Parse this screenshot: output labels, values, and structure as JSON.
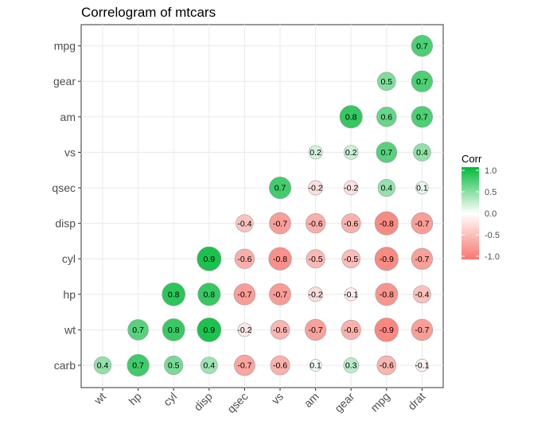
{
  "chart_data": {
    "type": "correlogram",
    "title": "Correlogram of mtcars",
    "x_variables": [
      "wt",
      "hp",
      "cyl",
      "disp",
      "qsec",
      "vs",
      "am",
      "gear",
      "mpg",
      "drat"
    ],
    "y_variables": [
      "carb",
      "wt",
      "hp",
      "cyl",
      "disp",
      "qsec",
      "vs",
      "am",
      "gear",
      "mpg"
    ],
    "cells": [
      {
        "x": "drat",
        "y": "mpg",
        "value": 0.7,
        "label": "0.7"
      },
      {
        "x": "mpg",
        "y": "gear",
        "value": 0.5,
        "label": "0.5"
      },
      {
        "x": "drat",
        "y": "gear",
        "value": 0.7,
        "label": "0.7"
      },
      {
        "x": "gear",
        "y": "am",
        "value": 0.8,
        "label": "0.8"
      },
      {
        "x": "mpg",
        "y": "am",
        "value": 0.6,
        "label": "0.6"
      },
      {
        "x": "drat",
        "y": "am",
        "value": 0.7,
        "label": "0.7"
      },
      {
        "x": "am",
        "y": "vs",
        "value": 0.17,
        "label": "0.2"
      },
      {
        "x": "gear",
        "y": "vs",
        "value": 0.21,
        "label": "0.2"
      },
      {
        "x": "mpg",
        "y": "vs",
        "value": 0.66,
        "label": "0.7"
      },
      {
        "x": "drat",
        "y": "vs",
        "value": 0.44,
        "label": "0.4"
      },
      {
        "x": "vs",
        "y": "qsec",
        "value": 0.74,
        "label": "0.7"
      },
      {
        "x": "am",
        "y": "qsec",
        "value": -0.23,
        "label": "-0.2"
      },
      {
        "x": "gear",
        "y": "qsec",
        "value": -0.21,
        "label": "-0.2"
      },
      {
        "x": "mpg",
        "y": "qsec",
        "value": 0.42,
        "label": "0.4"
      },
      {
        "x": "drat",
        "y": "qsec",
        "value": 0.09,
        "label": "0.1"
      },
      {
        "x": "qsec",
        "y": "disp",
        "value": -0.43,
        "label": "-0.4"
      },
      {
        "x": "vs",
        "y": "disp",
        "value": -0.71,
        "label": "-0.7"
      },
      {
        "x": "am",
        "y": "disp",
        "value": -0.59,
        "label": "-0.6"
      },
      {
        "x": "gear",
        "y": "disp",
        "value": -0.56,
        "label": "-0.6"
      },
      {
        "x": "mpg",
        "y": "disp",
        "value": -0.85,
        "label": "-0.8"
      },
      {
        "x": "drat",
        "y": "disp",
        "value": -0.71,
        "label": "-0.7"
      },
      {
        "x": "disp",
        "y": "cyl",
        "value": 0.9,
        "label": "0.9"
      },
      {
        "x": "qsec",
        "y": "cyl",
        "value": -0.59,
        "label": "-0.6"
      },
      {
        "x": "vs",
        "y": "cyl",
        "value": -0.81,
        "label": "-0.8"
      },
      {
        "x": "am",
        "y": "cyl",
        "value": -0.52,
        "label": "-0.5"
      },
      {
        "x": "gear",
        "y": "cyl",
        "value": -0.49,
        "label": "-0.5"
      },
      {
        "x": "mpg",
        "y": "cyl",
        "value": -0.85,
        "label": "-0.9"
      },
      {
        "x": "drat",
        "y": "cyl",
        "value": -0.7,
        "label": "-0.7"
      },
      {
        "x": "cyl",
        "y": "hp",
        "value": 0.83,
        "label": "0.8"
      },
      {
        "x": "disp",
        "y": "hp",
        "value": 0.79,
        "label": "0.8"
      },
      {
        "x": "qsec",
        "y": "hp",
        "value": -0.71,
        "label": "-0.7"
      },
      {
        "x": "vs",
        "y": "hp",
        "value": -0.72,
        "label": "-0.7"
      },
      {
        "x": "am",
        "y": "hp",
        "value": -0.24,
        "label": "-0.2"
      },
      {
        "x": "gear",
        "y": "hp",
        "value": -0.13,
        "label": "-0.1"
      },
      {
        "x": "mpg",
        "y": "hp",
        "value": -0.78,
        "label": "-0.8"
      },
      {
        "x": "drat",
        "y": "hp",
        "value": -0.45,
        "label": "-0.4"
      },
      {
        "x": "hp",
        "y": "wt",
        "value": 0.66,
        "label": "0.7"
      },
      {
        "x": "cyl",
        "y": "wt",
        "value": 0.78,
        "label": "0.8"
      },
      {
        "x": "disp",
        "y": "wt",
        "value": 0.89,
        "label": "0.9"
      },
      {
        "x": "qsec",
        "y": "wt",
        "value": -0.17,
        "label": "-0.2"
      },
      {
        "x": "vs",
        "y": "wt",
        "value": -0.55,
        "label": "-0.6"
      },
      {
        "x": "am",
        "y": "wt",
        "value": -0.69,
        "label": "-0.7"
      },
      {
        "x": "gear",
        "y": "wt",
        "value": -0.58,
        "label": "-0.6"
      },
      {
        "x": "mpg",
        "y": "wt",
        "value": -0.87,
        "label": "-0.9"
      },
      {
        "x": "drat",
        "y": "wt",
        "value": -0.71,
        "label": "-0.7"
      },
      {
        "x": "wt",
        "y": "carb",
        "value": 0.43,
        "label": "0.4"
      },
      {
        "x": "hp",
        "y": "carb",
        "value": 0.75,
        "label": "0.7"
      },
      {
        "x": "cyl",
        "y": "carb",
        "value": 0.53,
        "label": "0.5"
      },
      {
        "x": "disp",
        "y": "carb",
        "value": 0.39,
        "label": "0.4"
      },
      {
        "x": "qsec",
        "y": "carb",
        "value": -0.66,
        "label": "-0.7"
      },
      {
        "x": "vs",
        "y": "carb",
        "value": -0.57,
        "label": "-0.6"
      },
      {
        "x": "am",
        "y": "carb",
        "value": 0.06,
        "label": "0.1"
      },
      {
        "x": "gear",
        "y": "carb",
        "value": 0.27,
        "label": "0.3"
      },
      {
        "x": "mpg",
        "y": "carb",
        "value": -0.55,
        "label": "-0.6"
      },
      {
        "x": "drat",
        "y": "carb",
        "value": -0.09,
        "label": "-0.1"
      }
    ],
    "legend": {
      "title": "Corr",
      "ticks": [
        {
          "value": 1.0,
          "label": "1.0"
        },
        {
          "value": 0.5,
          "label": "0.5"
        },
        {
          "value": 0.0,
          "label": "0.0"
        },
        {
          "value": -0.5,
          "label": "-0.5"
        },
        {
          "value": -1.0,
          "label": "-1.0"
        }
      ],
      "range": [
        -1.0,
        1.0
      ]
    },
    "colors": {
      "low": "#F8766D",
      "mid": "#FFFFFF",
      "high": "#00BA38"
    },
    "grid": true,
    "legend_position": "right"
  }
}
